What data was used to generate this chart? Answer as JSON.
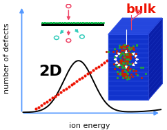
{
  "xlabel": "ion energy",
  "ylabel": "number of defects",
  "label_2d": "2D",
  "label_bulk": "bulk",
  "bg_color": "#ffffff",
  "axis_color": "#5599ff",
  "curve_color": "#000000",
  "dotted_line_color": "#ee1100",
  "arrow_color_pink": "#ee4466",
  "arrow_color_cyan": "#33ccbb",
  "circle_color_pink": "#ee4466",
  "circle_color_cyan": "#33ccbb",
  "bulk_label_color": "#ee1100",
  "label_2d_fontsize": 16,
  "label_bulk_fontsize": 13,
  "axis_label_fontsize": 8,
  "xlim": [
    0,
    10
  ],
  "ylim": [
    0,
    10
  ],
  "box_blue_front": "#1133cc",
  "box_blue_top": "#2244dd",
  "box_blue_right": "#0a1faa",
  "box_line_color": "#3355ee",
  "white_arrow_color": "#ffffff",
  "red_dot_color": "#cc2200",
  "green_dot_color": "#22aa44"
}
